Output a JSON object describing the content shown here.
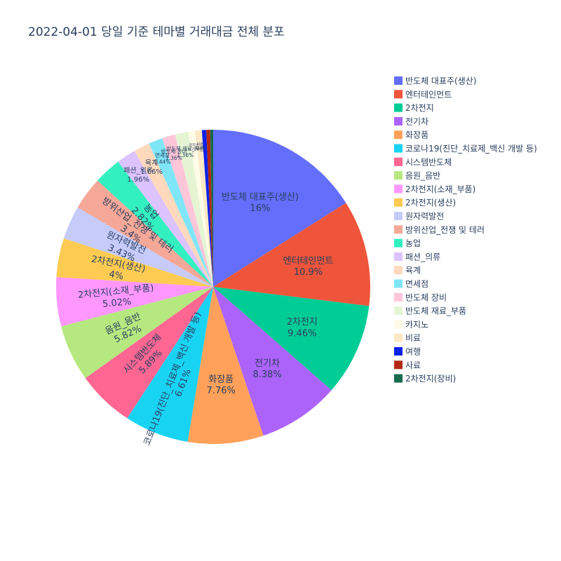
{
  "chart_data": {
    "type": "pie",
    "title": "2022-04-01 당일 기준 테마별 거래대금 전체 분포",
    "slices": [
      {
        "label": "반도체 대표주(생산)",
        "percent": 16,
        "text": "16%",
        "color": "#636efa"
      },
      {
        "label": "엔터테인먼트",
        "percent": 10.9,
        "text": "10.9%",
        "color": "#ef553b"
      },
      {
        "label": "2차전지",
        "percent": 9.46,
        "text": "9.46%",
        "color": "#00cc96"
      },
      {
        "label": "전기차",
        "percent": 8.38,
        "text": "8.38%",
        "color": "#ab63fa"
      },
      {
        "label": "화장품",
        "percent": 7.76,
        "text": "7.76%",
        "color": "#ffa15a"
      },
      {
        "label": "코로나19(진단_치료제_백신 개발 등)",
        "percent": 6.61,
        "text": "6.61%",
        "color": "#19d3f3"
      },
      {
        "label": "시스템반도체",
        "percent": 5.89,
        "text": "5.89%",
        "color": "#ff6692"
      },
      {
        "label": "음원_음반",
        "percent": 5.82,
        "text": "5.82%",
        "color": "#b6e880"
      },
      {
        "label": "2차전지(소재_부품)",
        "percent": 5.02,
        "text": "5.02%",
        "color": "#ff97ff"
      },
      {
        "label": "2차전지(생산)",
        "percent": 4,
        "text": "4%",
        "color": "#fecb52"
      },
      {
        "label": "원자력발전",
        "percent": 3.43,
        "text": "3.43%",
        "color": "#c6cbfa"
      },
      {
        "label": "방위산업_전쟁 및 테러",
        "percent": 3.4,
        "text": "3.4%",
        "color": "#f5a898"
      },
      {
        "label": "농업",
        "percent": 2.82,
        "text": "2.82%",
        "color": "#33f0c0"
      },
      {
        "label": "패션_의류",
        "percent": 1.96,
        "text": "1.96%",
        "color": "#dcc3fd"
      },
      {
        "label": "육계",
        "percent": 1.66,
        "text": "1.66%",
        "color": "#ffd9bd"
      },
      {
        "label": "면세점",
        "percent": 1.44,
        "text": "1.44%",
        "color": "#7fe6f8"
      },
      {
        "label": "반도체 장비",
        "percent": 1.36,
        "text": "1.36%",
        "color": "#ffc5d8"
      },
      {
        "label": "반도체 재료_부품",
        "percent": 1.36,
        "text": "1.36%",
        "color": "#e5f5d4"
      },
      {
        "label": "카지노",
        "percent": 0.71,
        "text": "0.71%",
        "color": "#fffbe6"
      },
      {
        "label": "비료",
        "percent": 0.68,
        "text": "0.68%",
        "color": "#fce8c5"
      },
      {
        "label": "여행",
        "percent": 0.45,
        "text": "",
        "color": "#0d22e8"
      },
      {
        "label": "사료",
        "percent": 0.4,
        "text": "",
        "color": "#b22a14"
      },
      {
        "label": "2차전지(장비)",
        "percent": 0.3,
        "text": "",
        "color": "#156b4a"
      }
    ]
  }
}
